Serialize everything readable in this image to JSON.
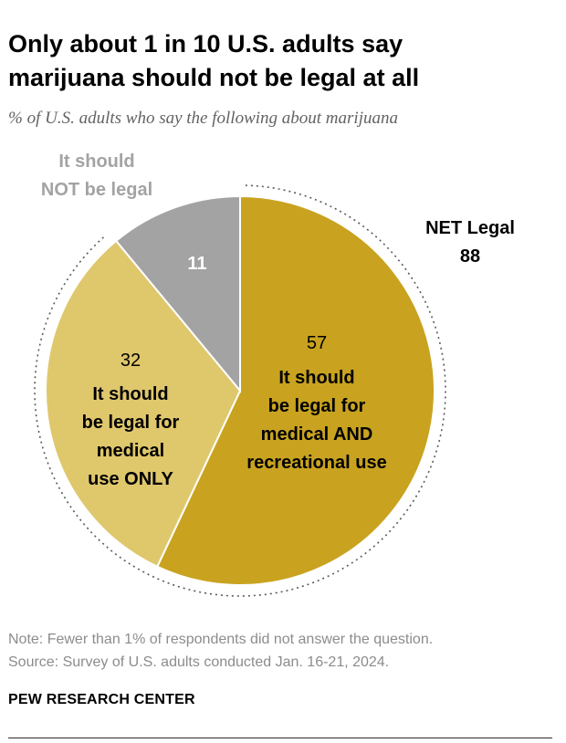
{
  "title_lines": [
    "Only about 1 in 10 U.S. adults say",
    "marijuana should not be legal at all"
  ],
  "subtitle": "% of U.S. adults who say the following about marijuana",
  "chart_data": {
    "type": "pie",
    "slices": [
      {
        "label_lines": [
          "It should",
          "be legal for",
          "medical AND",
          "recreational use"
        ],
        "value": 57,
        "value_label": "57",
        "color": "#c9a320"
      },
      {
        "label_lines": [
          "It should",
          "be legal for",
          "medical",
          "use ONLY"
        ],
        "value": 32,
        "value_label": "32",
        "color": "#dfc76c"
      },
      {
        "label_lines": [
          "It should",
          "NOT be legal"
        ],
        "value": 11,
        "value_label": "11",
        "color": "#a3a3a3"
      }
    ],
    "net": {
      "label": "NET Legal",
      "value_label": "88"
    },
    "label_color_muted": "#a3a3a3"
  },
  "note_lines": [
    "Note: Fewer than 1% of respondents did not answer the question.",
    "Source: Survey of U.S. adults conducted Jan. 16-21, 2024."
  ],
  "brand": "PEW RESEARCH CENTER"
}
